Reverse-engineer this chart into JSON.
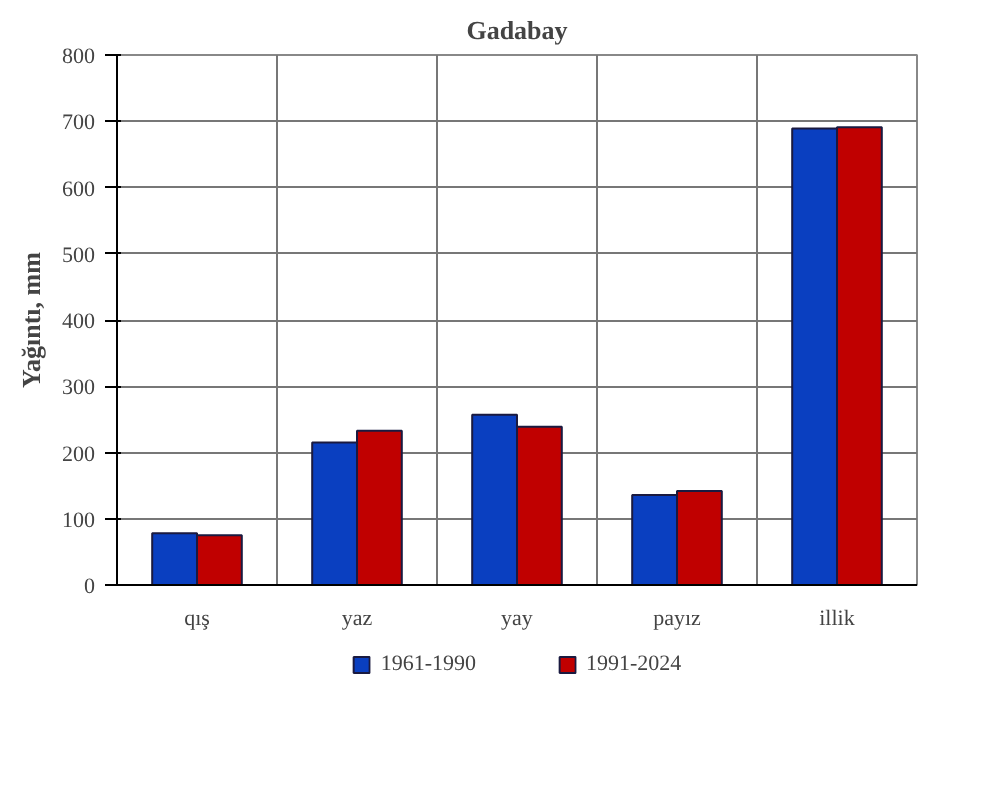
{
  "chart_data": {
    "type": "bar",
    "title": "Gadabay",
    "ylabel": "Yağıntı, mm",
    "categories": [
      "qış",
      "yaz",
      "yay",
      "payız",
      "illik"
    ],
    "series": [
      {
        "name": "1961-1990",
        "color": "#0a3fc0",
        "values": [
          78,
          215,
          257,
          136,
          689
        ]
      },
      {
        "name": "1991-2024",
        "color": "#c00000",
        "values": [
          75,
          233,
          239,
          142,
          691
        ]
      }
    ],
    "ylim": [
      0,
      800
    ],
    "yticks": [
      0,
      100,
      200,
      300,
      400,
      500,
      600,
      700,
      800
    ],
    "grid": true,
    "legend": "bottom"
  }
}
